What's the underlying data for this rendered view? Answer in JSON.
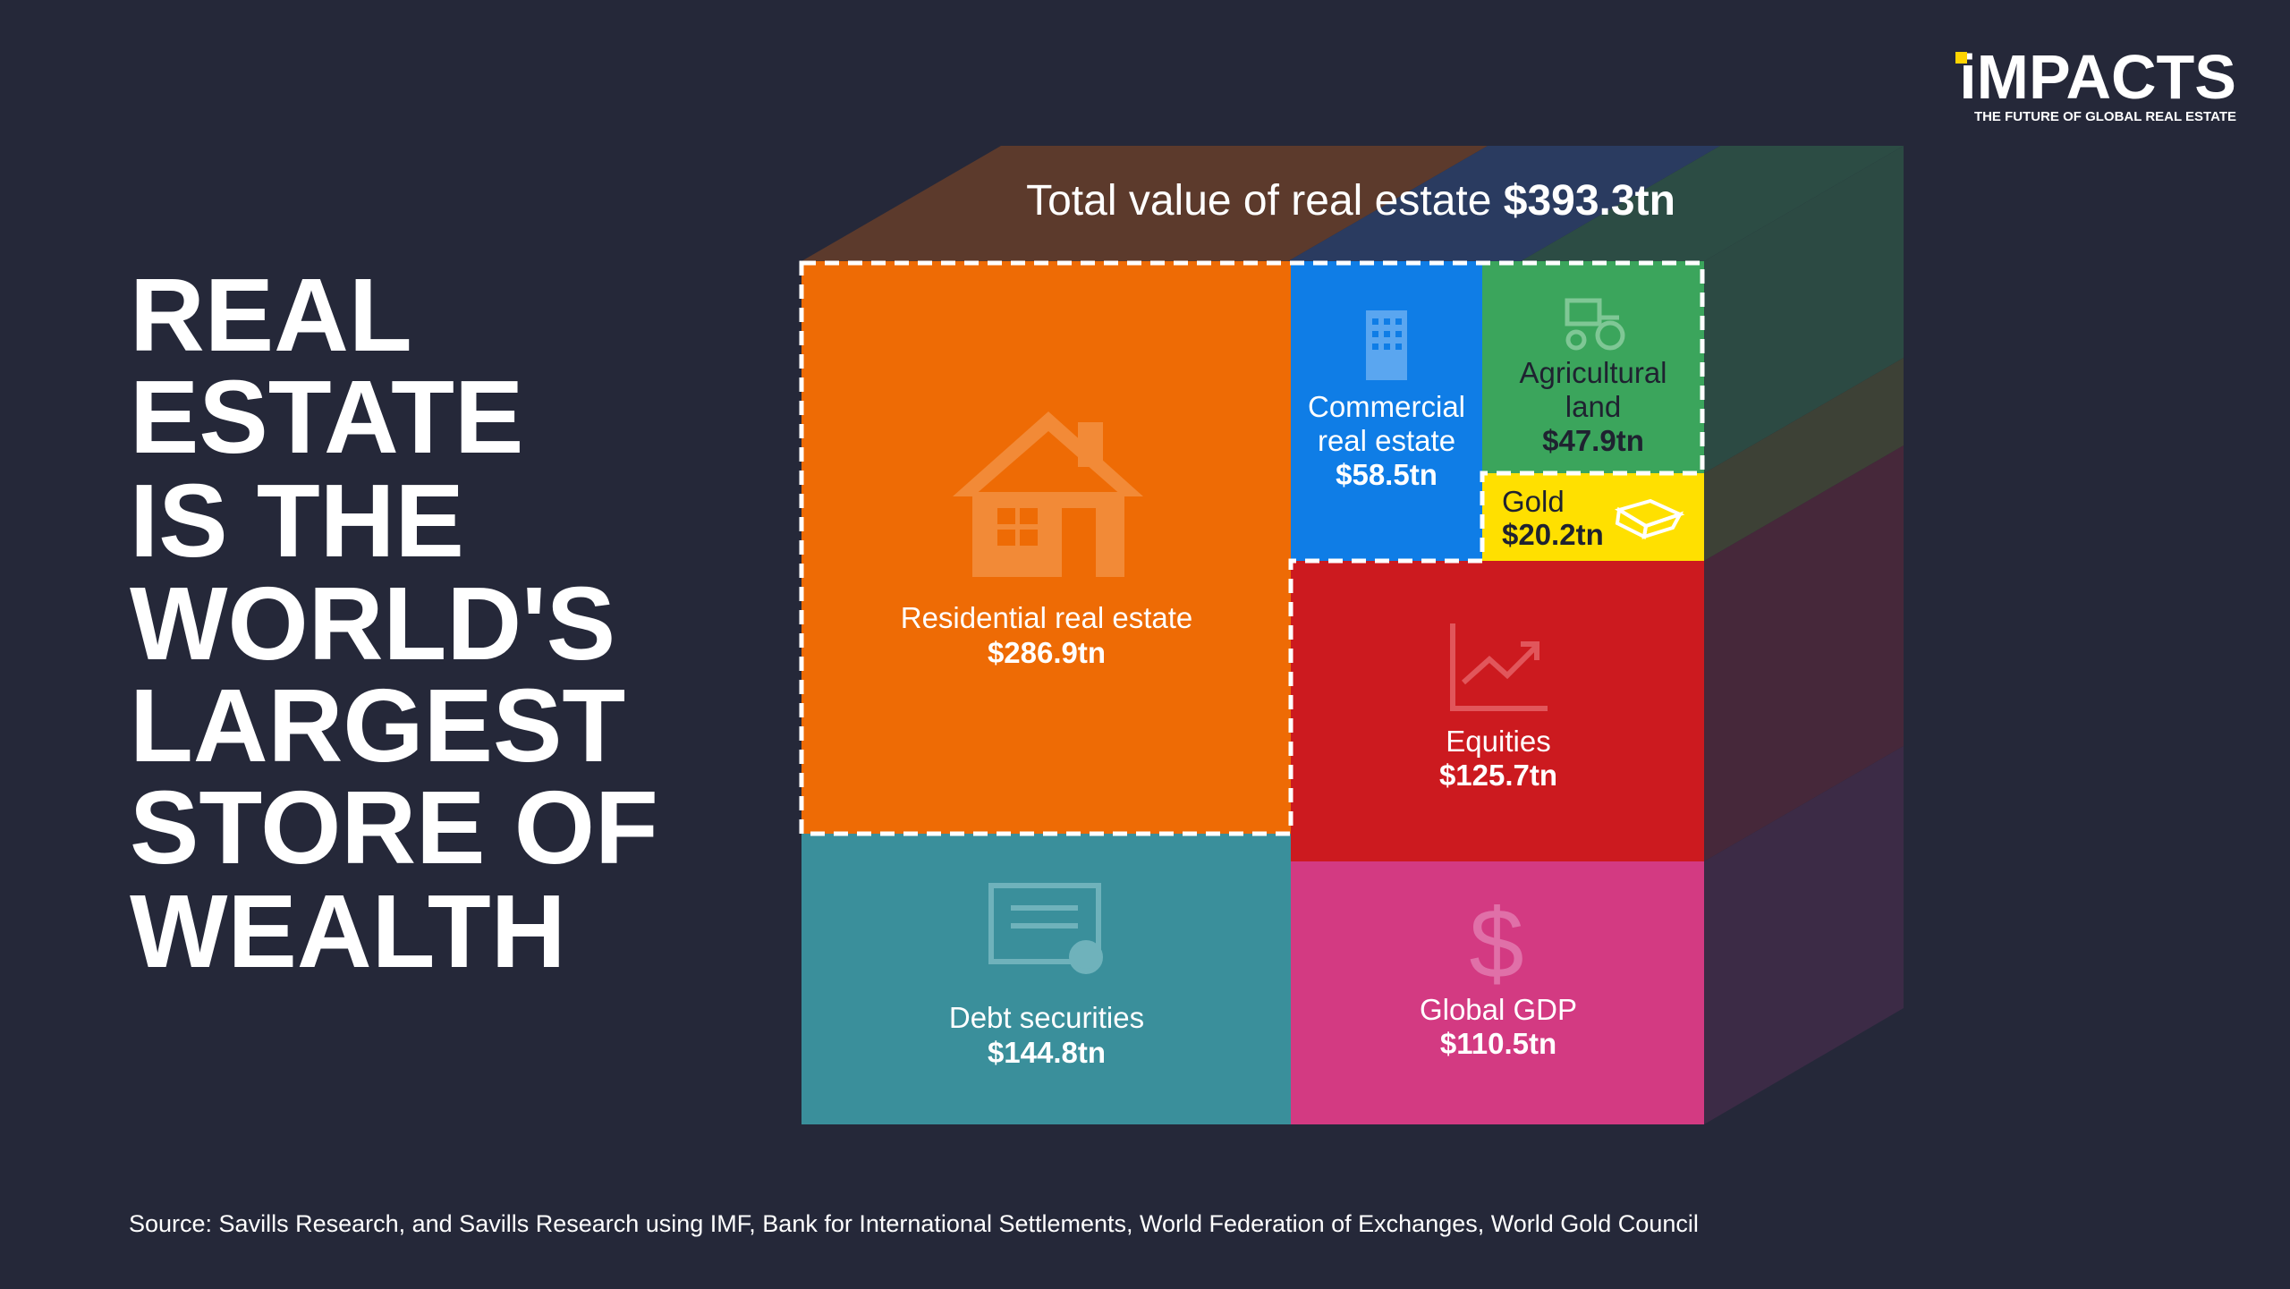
{
  "logo": {
    "name": "iMPACTS",
    "tagline": "THE FUTURE OF GLOBAL REAL ESTATE"
  },
  "headline": [
    "REAL",
    "ESTATE",
    "IS THE",
    "WORLD'S",
    "LARGEST",
    "STORE OF",
    "WEALTH"
  ],
  "total": {
    "label": "Total value of real estate",
    "value": "$393.3tn"
  },
  "blocks": [
    {
      "label": [
        "Residential real estate"
      ],
      "value": "$286.9tn"
    },
    {
      "label": [
        "Commercial",
        "real estate"
      ],
      "value": "$58.5tn"
    },
    {
      "label": [
        "Agricultural",
        "land"
      ],
      "value": "$47.9tn"
    },
    {
      "label": [
        "Gold"
      ],
      "value": "$20.2tn"
    },
    {
      "label": [
        "Equities"
      ],
      "value": "$125.7tn"
    },
    {
      "label": [
        "Debt securities"
      ],
      "value": "$144.8tn"
    },
    {
      "label": [
        "Global GDP"
      ],
      "value": "$110.5tn"
    }
  ],
  "source": "Source: Savills Research, and Savills Research using IMF, Bank for International Settlements, World Federation of Exchanges, World Gold Council"
}
